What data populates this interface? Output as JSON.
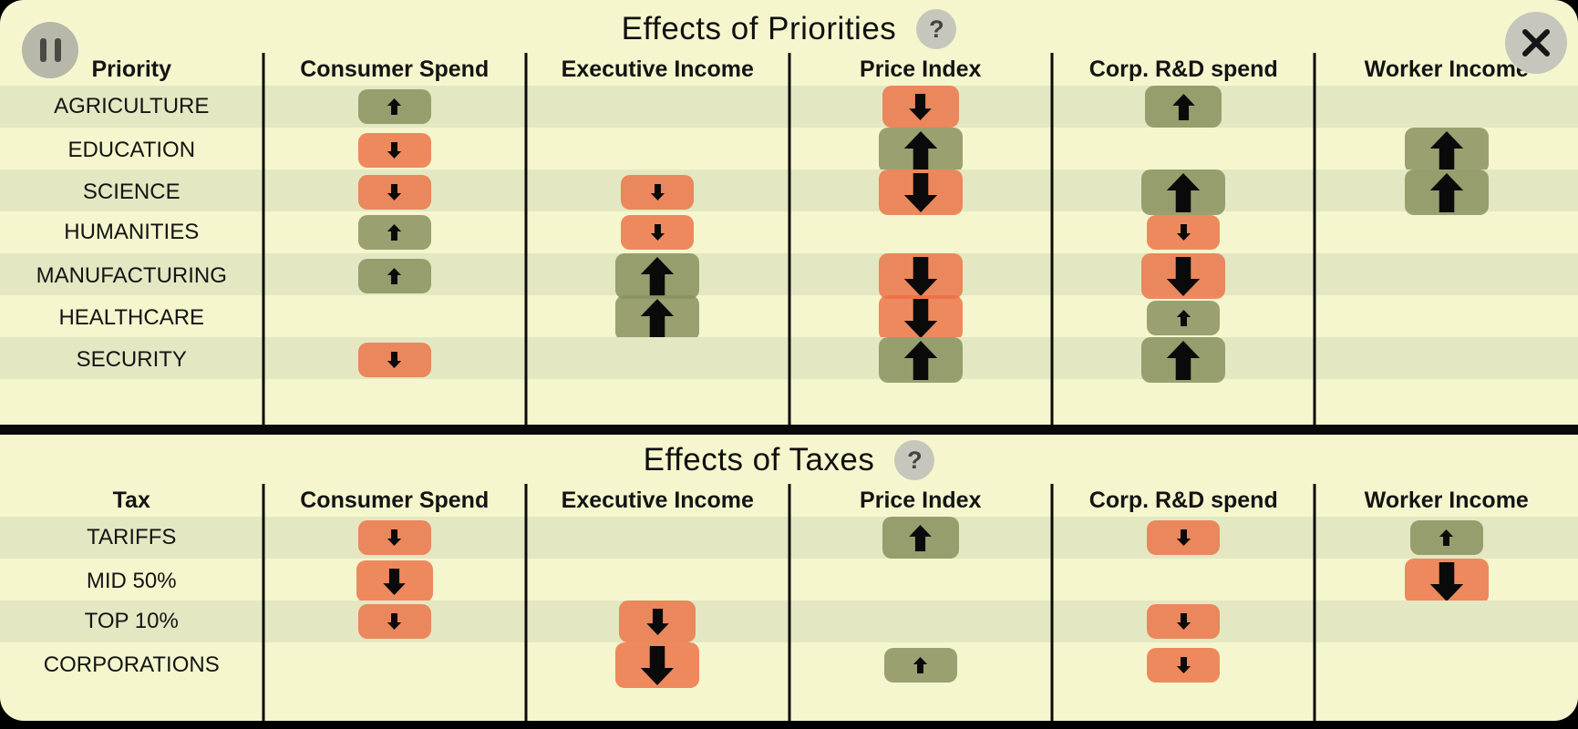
{
  "app": {
    "pause_icon": "pause-icon",
    "close_icon": "close-icon",
    "help_icon": "question-icon",
    "help_symbol": "?"
  },
  "colors": {
    "background": "#f5f6cd",
    "stripe": "#e3e8c2",
    "positive_badge": "rgba(138,145,95,0.85)",
    "negative_badge": "rgba(236,110,66,0.8)",
    "arrow": "#0a0a0a",
    "line": "#0a0a0a",
    "button_gray": "#c6c6bd",
    "text": "#141414"
  },
  "tables": [
    {
      "id": "priorities",
      "title": "Effects of Priorities",
      "row_header": "Priority",
      "columns": [
        "Consumer Spend",
        "Executive Income",
        "Price Index",
        "Corp. R&D spend",
        "Worker Income"
      ],
      "rows": [
        {
          "label": "AGRICULTURE",
          "effects": [
            {
              "dir": "up",
              "mag": 1,
              "tone": "positive"
            },
            null,
            {
              "dir": "down",
              "mag": 2,
              "tone": "negative"
            },
            {
              "dir": "up",
              "mag": 2,
              "tone": "positive"
            },
            null
          ]
        },
        {
          "label": "EDUCATION",
          "effects": [
            {
              "dir": "down",
              "mag": 1,
              "tone": "negative"
            },
            null,
            {
              "dir": "up",
              "mag": 3,
              "tone": "positive"
            },
            null,
            {
              "dir": "up",
              "mag": 3,
              "tone": "positive"
            }
          ]
        },
        {
          "label": "SCIENCE",
          "effects": [
            {
              "dir": "down",
              "mag": 1,
              "tone": "negative"
            },
            {
              "dir": "down",
              "mag": 1,
              "tone": "negative"
            },
            {
              "dir": "down",
              "mag": 3,
              "tone": "negative"
            },
            {
              "dir": "up",
              "mag": 3,
              "tone": "positive"
            },
            {
              "dir": "up",
              "mag": 3,
              "tone": "positive"
            }
          ]
        },
        {
          "label": "HUMANITIES",
          "effects": [
            {
              "dir": "up",
              "mag": 1,
              "tone": "positive"
            },
            {
              "dir": "down",
              "mag": 1,
              "tone": "negative"
            },
            null,
            {
              "dir": "down",
              "mag": 1,
              "tone": "negative"
            },
            null
          ]
        },
        {
          "label": "MANUFACTURING",
          "effects": [
            {
              "dir": "up",
              "mag": 1,
              "tone": "positive"
            },
            {
              "dir": "up",
              "mag": 3,
              "tone": "positive"
            },
            {
              "dir": "down",
              "mag": 3,
              "tone": "negative"
            },
            {
              "dir": "down",
              "mag": 3,
              "tone": "negative"
            },
            null
          ]
        },
        {
          "label": "HEALTHCARE",
          "effects": [
            null,
            {
              "dir": "up",
              "mag": 3,
              "tone": "positive"
            },
            {
              "dir": "down",
              "mag": 3,
              "tone": "negative"
            },
            {
              "dir": "up",
              "mag": 1,
              "tone": "positive"
            },
            null
          ]
        },
        {
          "label": "SECURITY",
          "effects": [
            {
              "dir": "down",
              "mag": 1,
              "tone": "negative"
            },
            null,
            {
              "dir": "up",
              "mag": 3,
              "tone": "positive"
            },
            {
              "dir": "up",
              "mag": 3,
              "tone": "positive"
            },
            null
          ]
        }
      ]
    },
    {
      "id": "taxes",
      "title": "Effects of Taxes",
      "row_header": "Tax",
      "columns": [
        "Consumer Spend",
        "Executive Income",
        "Price Index",
        "Corp. R&D spend",
        "Worker Income"
      ],
      "rows": [
        {
          "label": "TARIFFS",
          "effects": [
            {
              "dir": "down",
              "mag": 1,
              "tone": "negative"
            },
            null,
            {
              "dir": "up",
              "mag": 2,
              "tone": "positive"
            },
            {
              "dir": "down",
              "mag": 1,
              "tone": "negative"
            },
            {
              "dir": "up",
              "mag": 1,
              "tone": "positive"
            }
          ]
        },
        {
          "label": "MID 50%",
          "effects": [
            {
              "dir": "down",
              "mag": 2,
              "tone": "negative"
            },
            null,
            null,
            null,
            {
              "dir": "down",
              "mag": 3,
              "tone": "negative"
            }
          ]
        },
        {
          "label": "TOP 10%",
          "effects": [
            {
              "dir": "down",
              "mag": 1,
              "tone": "negative"
            },
            {
              "dir": "down",
              "mag": 2,
              "tone": "negative"
            },
            null,
            {
              "dir": "down",
              "mag": 1,
              "tone": "negative"
            },
            null
          ]
        },
        {
          "label": "CORPORATIONS",
          "effects": [
            null,
            {
              "dir": "down",
              "mag": 3,
              "tone": "negative"
            },
            {
              "dir": "up",
              "mag": 1,
              "tone": "positive"
            },
            {
              "dir": "down",
              "mag": 1,
              "tone": "negative"
            },
            null
          ]
        }
      ]
    }
  ]
}
